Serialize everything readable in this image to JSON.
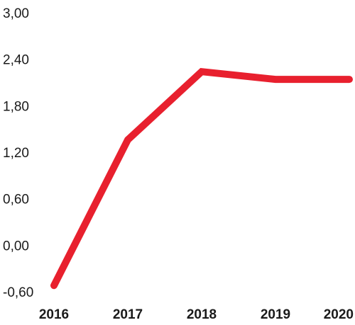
{
  "chart_data": {
    "type": "line",
    "categories": [
      "2016",
      "2017",
      "2018",
      "2019",
      "2020"
    ],
    "series": [
      {
        "values": [
          -0.52,
          1.36,
          2.24,
          2.14,
          2.14
        ]
      }
    ],
    "yticks": [
      "3,00",
      "2,40",
      "1,80",
      "1,20",
      "0,60",
      "0,00",
      "-0,60"
    ],
    "ylim": [
      -0.6,
      3.0
    ],
    "line_color": "#e8202e",
    "grid": false,
    "legend": "none"
  }
}
